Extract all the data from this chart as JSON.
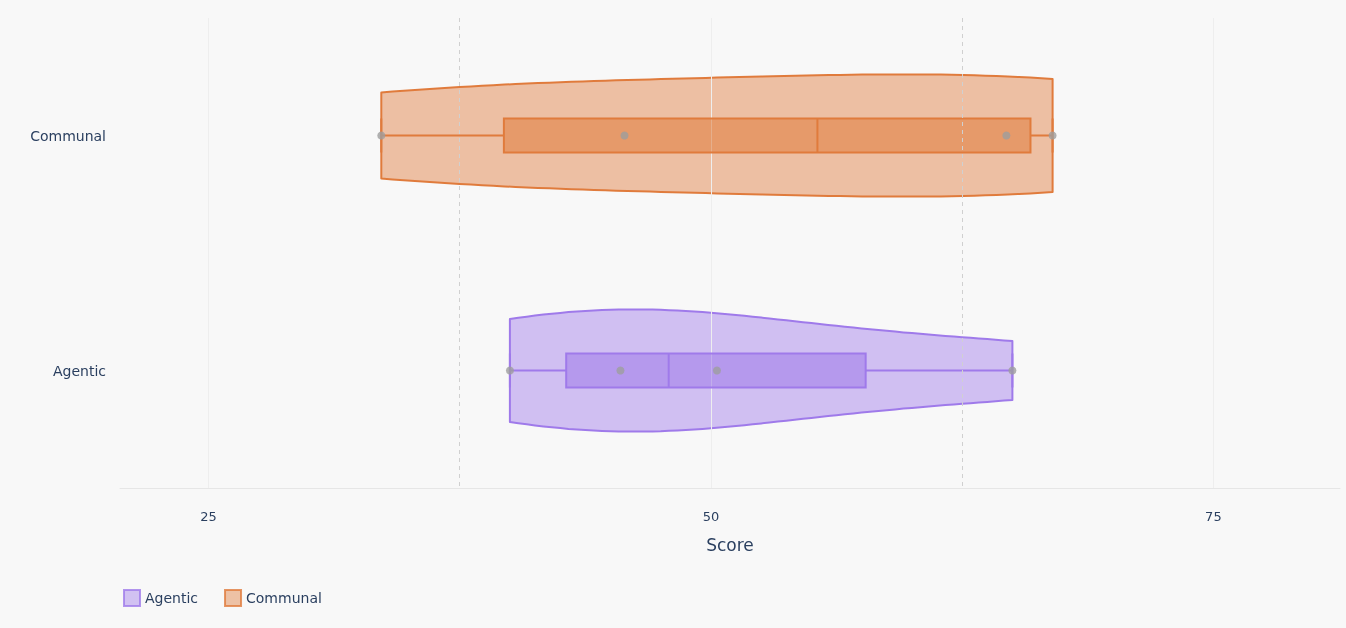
{
  "chart_data": {
    "type": "box",
    "orientation": "horizontal",
    "xlabel": "Score",
    "categories": [
      "Communal",
      "Agentic"
    ],
    "series": [
      {
        "name": "Agentic",
        "color": "#9f7aea",
        "boxes": [
          null,
          {
            "low": 40.0,
            "q1": 42.8,
            "median": 47.9,
            "q3": 57.7,
            "high": 65.0
          }
        ]
      },
      {
        "name": "Communal",
        "color": "#e07b3c",
        "boxes": [
          {
            "low": 33.6,
            "q1": 39.7,
            "median": 55.3,
            "q3": 65.9,
            "high": 67.0
          },
          null
        ]
      },
      {
        "type": "scatter",
        "color": "#9e9e9e",
        "x": [
          "Communal",
          "Communal",
          "Communal",
          "Communal",
          "Agentic",
          "Agentic",
          "Agentic",
          "Agentic"
        ],
        "values": [
          33.6,
          45.7,
          64.7,
          67.0,
          40.0,
          45.5,
          50.3,
          65.0
        ]
      }
    ],
    "xlim": [
      20.6,
      81.3
    ],
    "xticks": [
      25,
      50,
      75
    ],
    "ref_lines": [
      {
        "axis": "x",
        "value": 37.5,
        "color": "#d0d0d0",
        "line_style": "dashed"
      },
      {
        "axis": "x",
        "value": 62.5,
        "color": "#d0d0d0",
        "line_style": "dashed"
      }
    ],
    "grid": "x",
    "legend": "bottom left"
  }
}
